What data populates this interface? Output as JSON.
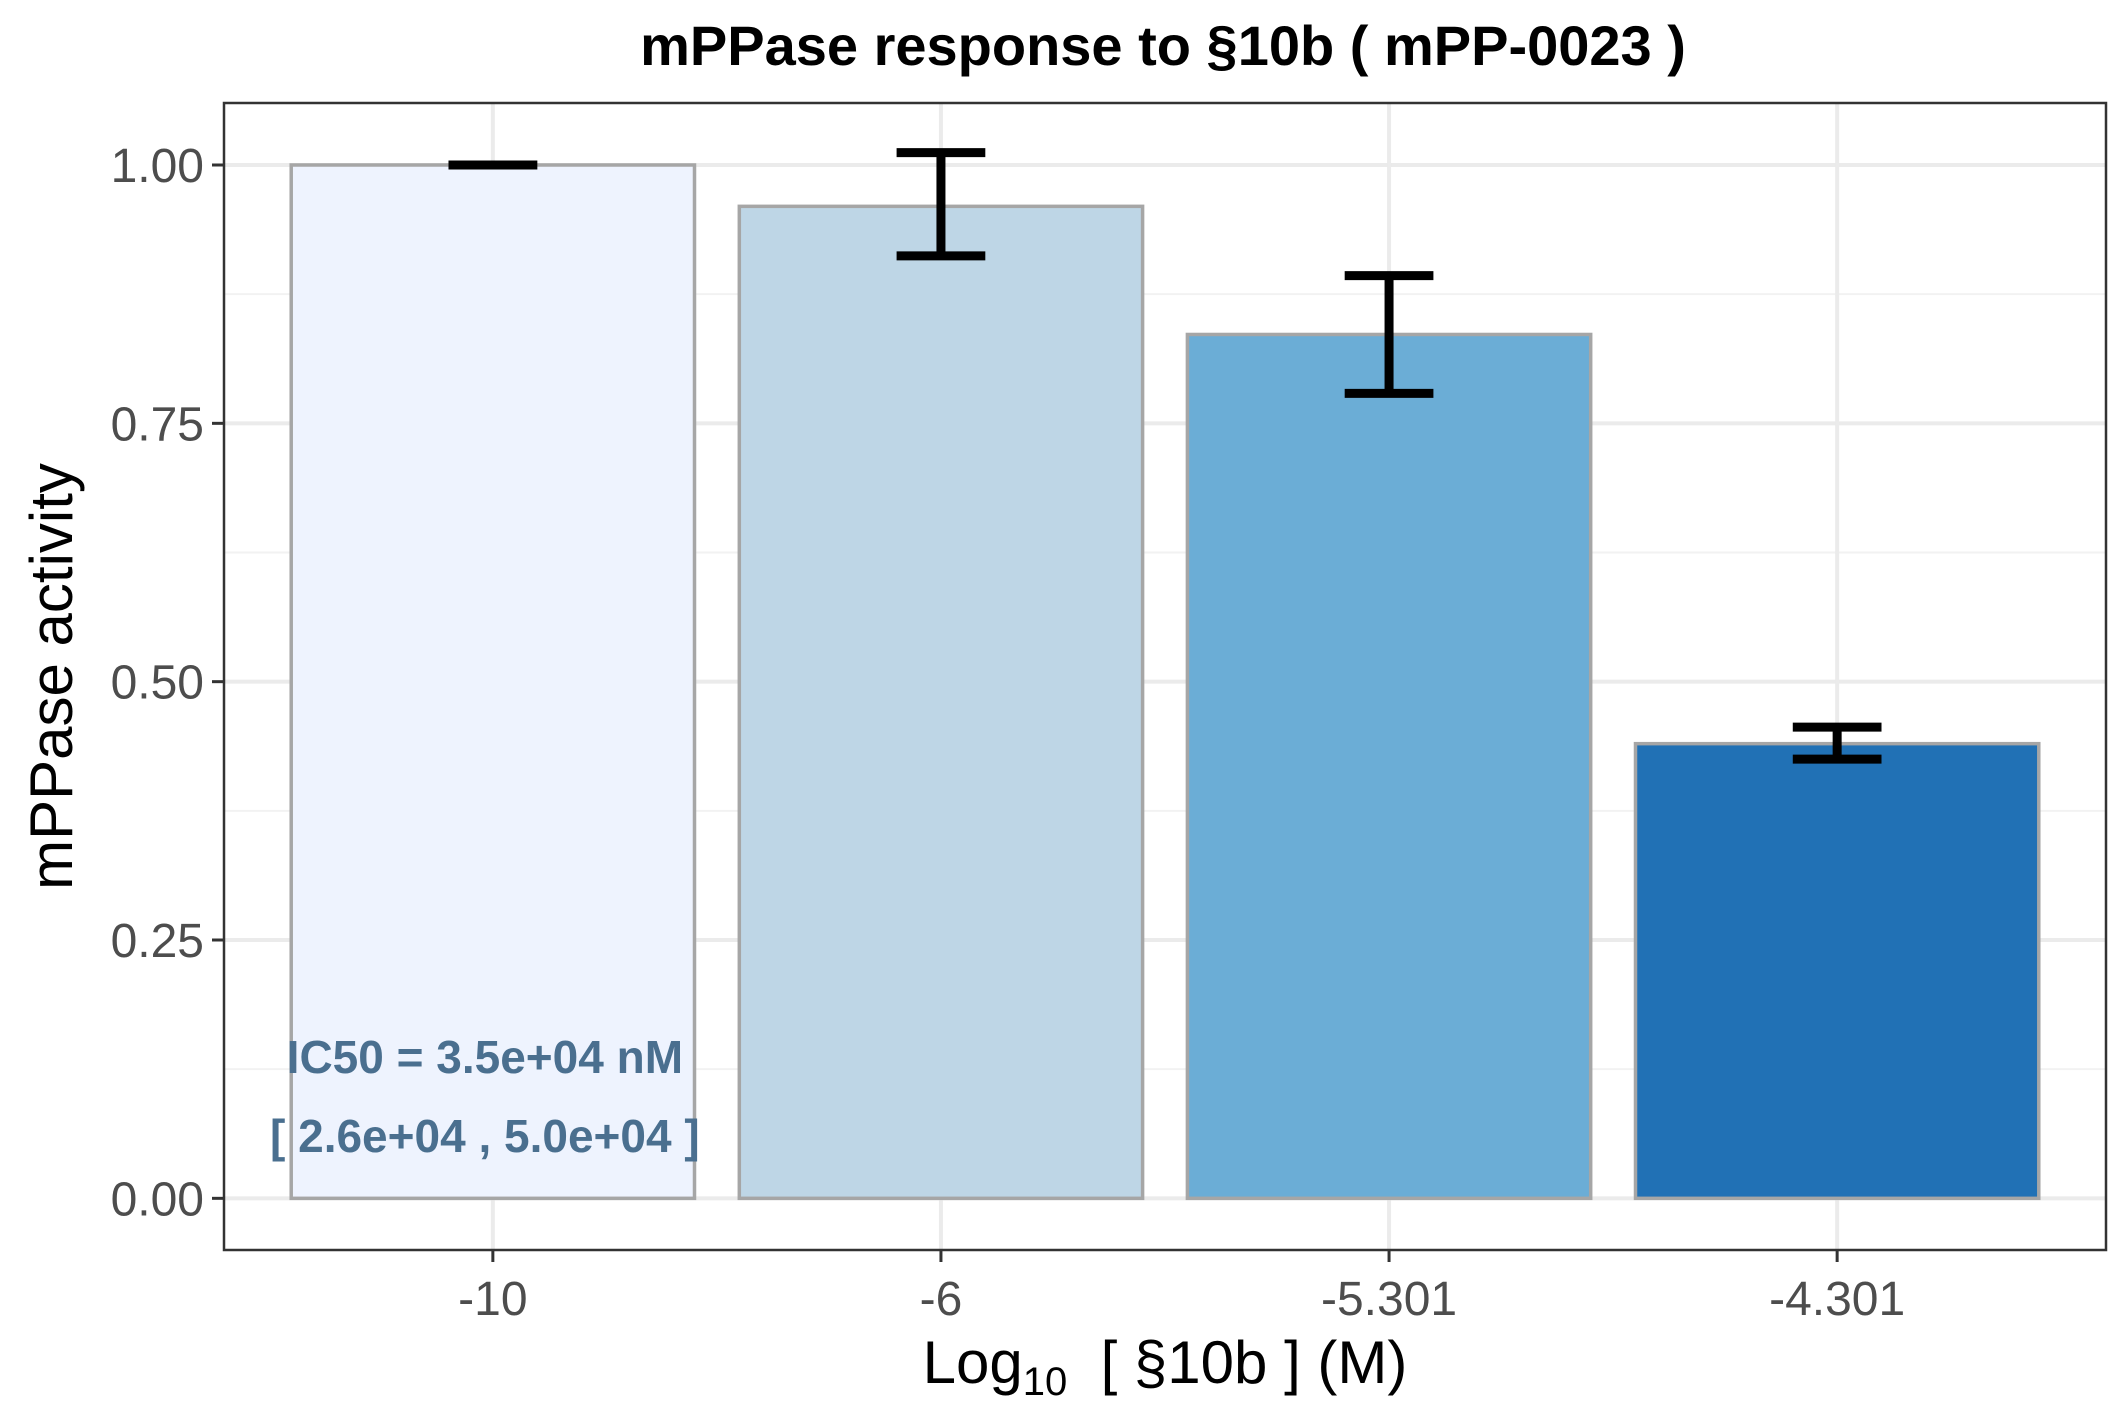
{
  "chart_data": {
    "type": "bar",
    "title": "mPPase response to §10b ( mPP-0023 )",
    "xlabel": {
      "main": "Log",
      "sub": "10",
      "rest": "  [ §10b ] (M)"
    },
    "ylabel": "mPPase activity",
    "categories": [
      "-10",
      "-6",
      "-5.301",
      "-4.301"
    ],
    "values": [
      1.0,
      0.96,
      0.836,
      0.44
    ],
    "error_low": [
      1.0,
      0.912,
      0.779,
      0.425
    ],
    "error_high": [
      1.0,
      1.012,
      0.893,
      0.456
    ],
    "bar_colors": [
      "#eef3fe",
      "#bed6e6",
      "#6badd6",
      "#2171b5"
    ],
    "bar_outline": "#a6a6a6",
    "ylim": [
      -0.05,
      1.06
    ],
    "yticks": [
      "0.00",
      "0.25",
      "0.50",
      "0.75",
      "1.00"
    ],
    "ytick_values": [
      0,
      0.25,
      0.5,
      0.75,
      1.0
    ],
    "grid": true,
    "legend": "none",
    "annotations": [
      "IC50 = 3.5e+04 nM",
      "[ 2.6e+04 , 5.0e+04 ]"
    ]
  }
}
